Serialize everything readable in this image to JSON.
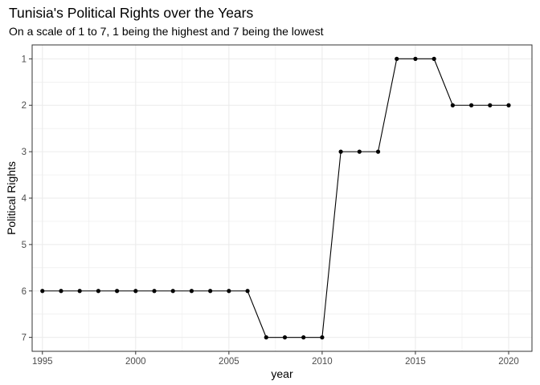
{
  "chart_data": {
    "type": "line",
    "title": "Tunisia's Political Rights over the Years",
    "subtitle": "On a scale of 1 to 7, 1 being the highest and 7 being the lowest",
    "xlabel": "year",
    "ylabel": "Political Rights",
    "x": [
      1995,
      1996,
      1997,
      1998,
      1999,
      2000,
      2001,
      2002,
      2003,
      2004,
      2005,
      2006,
      2007,
      2008,
      2009,
      2010,
      2011,
      2012,
      2013,
      2014,
      2015,
      2016,
      2017,
      2018,
      2019,
      2020
    ],
    "series": [
      {
        "values": [
          6,
          6,
          6,
          6,
          6,
          6,
          6,
          6,
          6,
          6,
          6,
          6,
          7,
          7,
          7,
          7,
          3,
          3,
          3,
          1,
          1,
          1,
          2,
          2,
          2,
          2
        ]
      }
    ],
    "xlim": [
      1994.45,
      2021.25
    ],
    "ylim": [
      0.7,
      7.3
    ],
    "y_reversed": true,
    "x_ticks": [
      1995,
      2000,
      2005,
      2010,
      2015,
      2020
    ],
    "y_ticks": [
      1,
      2,
      3,
      4,
      5,
      6,
      7
    ],
    "grid": true,
    "line_color": "#000000",
    "point_color": "#000000",
    "grid_color": "#ebebeb",
    "panel_border_color": "#333333"
  }
}
